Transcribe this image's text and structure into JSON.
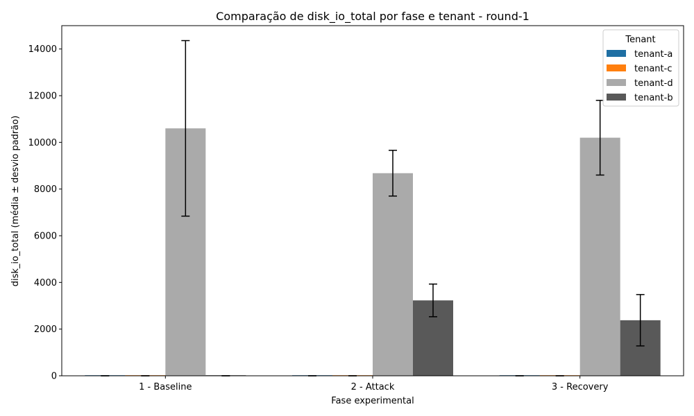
{
  "chart_data": {
    "type": "bar",
    "title": "Comparação de disk_io_total por fase e tenant - round-1",
    "xlabel": "Fase experimental",
    "ylabel": "disk_io_total (média ± desvio padrão)",
    "categories": [
      "1 - Baseline",
      "2 - Attack",
      "3 - Recovery"
    ],
    "ylim": [
      0,
      15000
    ],
    "yticks": [
      0,
      2000,
      4000,
      6000,
      8000,
      10000,
      12000,
      14000
    ],
    "ytick_labels": [
      "0",
      "2000",
      "4000",
      "6000",
      "8000",
      "10000",
      "12000",
      "14000"
    ],
    "grid": false,
    "legend": {
      "title": "Tenant",
      "position": "top-right"
    },
    "series": [
      {
        "name": "tenant-a",
        "color": "#1f6fa3",
        "values": [
          0,
          0,
          0
        ],
        "errors": [
          0,
          0,
          0
        ]
      },
      {
        "name": "tenant-c",
        "color": "#ff7f0e",
        "values": [
          0,
          0,
          0
        ],
        "errors": [
          0,
          0,
          0
        ]
      },
      {
        "name": "tenant-d",
        "color": "#aaaaaa",
        "values": [
          10600,
          8680,
          10200
        ],
        "errors": [
          3760,
          980,
          1600
        ]
      },
      {
        "name": "tenant-b",
        "color": "#595959",
        "values": [
          0,
          3230,
          2380
        ],
        "errors": [
          0,
          700,
          1100
        ]
      }
    ]
  }
}
